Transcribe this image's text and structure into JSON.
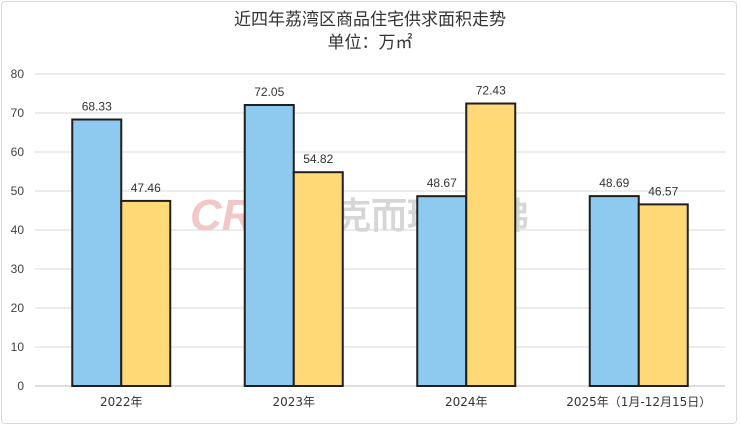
{
  "chart_data": {
    "type": "bar",
    "title": "近四年荔湾区商品住宅供求面积走势",
    "subtitle": "单位：万㎡",
    "categories": [
      "2022年",
      "2023年",
      "2024年",
      "2025年（1月-12月15日）"
    ],
    "series": [
      {
        "values": [
          68.33,
          72.05,
          48.67,
          48.69
        ],
        "color": "#8ecaef"
      },
      {
        "values": [
          47.46,
          54.82,
          72.43,
          46.57
        ],
        "color": "#ffd976"
      }
    ],
    "ylim": [
      0,
      80
    ],
    "yticks": [
      0,
      10,
      20,
      30,
      40,
      50,
      60,
      70,
      80
    ],
    "grid": true,
    "watermark": {
      "latin": "CRIC",
      "chinese": "克而瑞·广佛"
    }
  }
}
